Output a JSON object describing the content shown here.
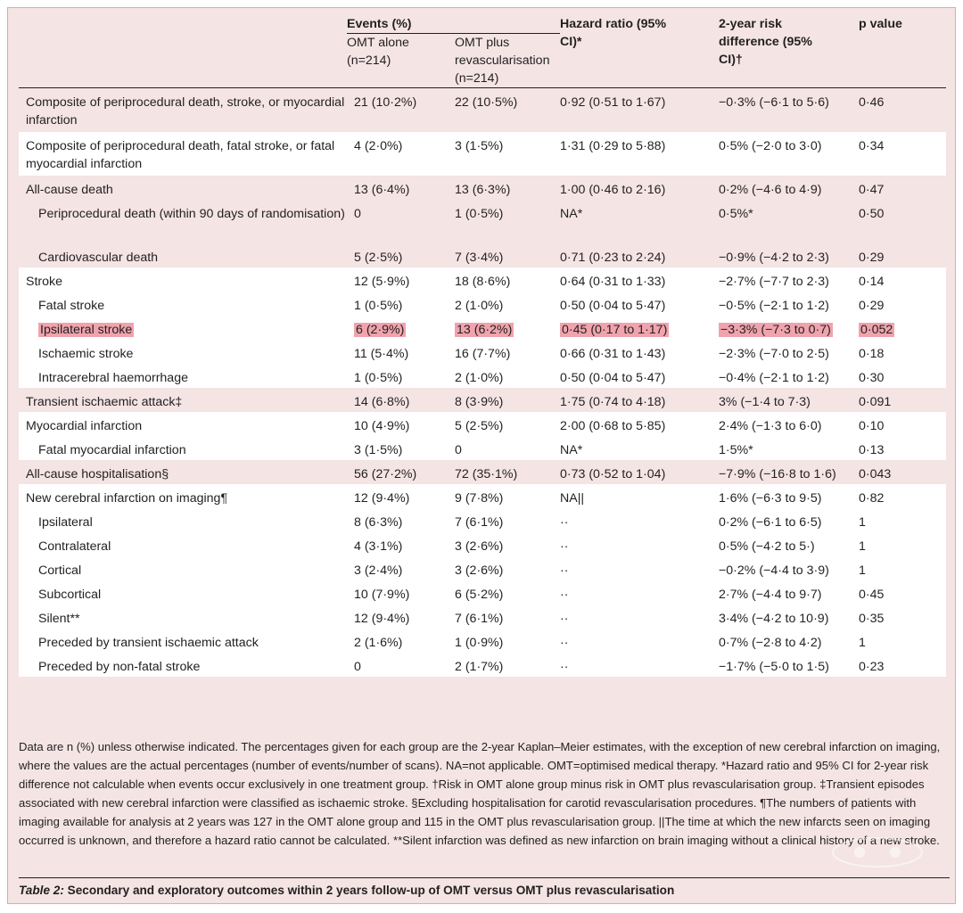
{
  "header": {
    "events": "Events (%)",
    "omt_alone": "OMT alone (n=214)",
    "omt_plus": "OMT plus revascularisation (n=214)",
    "hazard_ratio": "Hazard ratio (95% CI)*",
    "risk_diff": "2-year risk difference (95% CI)†",
    "p_value": "p value"
  },
  "rows": [
    {
      "label": "Composite of periprocedural death, stroke, or myocardial infarction",
      "omt": "21 (10·2%)",
      "plus": "22 (10·5%)",
      "hr": "0·92 (0·51 to 1·67)",
      "rd": "−0·3% (−6·1 to 5·6)",
      "p": "0·46"
    },
    {
      "label": "Composite of periprocedural death, fatal stroke, or fatal myocardial infarction",
      "omt": "4 (2·0%)",
      "plus": "3 (1·5%)",
      "hr": "1·31 (0·29 to 5·88)",
      "rd": "0·5% (−2·0 to 3·0)",
      "p": "0·34"
    },
    {
      "label": "All-cause death",
      "omt": "13 (6·4%)",
      "plus": "13 (6·3%)",
      "hr": "1·00 (0·46 to 2·16)",
      "rd": "0·2% (−4·6 to 4·9)",
      "p": "0·47"
    },
    {
      "label": "Periprocedural death (within 90 days of randomisation)",
      "omt": "0",
      "plus": "1 (0·5%)",
      "hr": "NA*",
      "rd": "0·5%*",
      "p": "0·50"
    },
    {
      "label": "Cardiovascular death",
      "omt": "5 (2·5%)",
      "plus": "7 (3·4%)",
      "hr": "0·71 (0·23 to 2·24)",
      "rd": "−0·9% (−4·2 to 2·3)",
      "p": "0·29"
    },
    {
      "label": "Stroke",
      "omt": "12 (5·9%)",
      "plus": "18 (8·6%)",
      "hr": "0·64 (0·31 to 1·33)",
      "rd": "−2·7% (−7·7 to 2·3)",
      "p": "0·14"
    },
    {
      "label": "Fatal stroke",
      "omt": "1 (0·5%)",
      "plus": "2 (1·0%)",
      "hr": "0·50 (0·04 to 5·47)",
      "rd": "−0·5% (−2·1 to 1·2)",
      "p": "0·29"
    },
    {
      "label": "Ipsilateral stroke",
      "omt": "6 (2·9%)",
      "plus": "13 (6·2%)",
      "hr": "0·45 (0·17 to 1·17)",
      "rd": "−3·3% (−7·3 to 0·7)",
      "p": "0·052"
    },
    {
      "label": "Ischaemic stroke",
      "omt": "11 (5·4%)",
      "plus": "16 (7·7%)",
      "hr": "0·66 (0·31 to 1·43)",
      "rd": "−2·3% (−7·0 to 2·5)",
      "p": "0·18"
    },
    {
      "label": "Intracerebral haemorrhage",
      "omt": "1 (0·5%)",
      "plus": "2 (1·0%)",
      "hr": "0·50 (0·04 to 5·47)",
      "rd": "−0·4% (−2·1 to 1·2)",
      "p": "0·30"
    },
    {
      "label": "Transient ischaemic attack‡",
      "omt": "14 (6·8%)",
      "plus": "8 (3·9%)",
      "hr": "1·75 (0·74 to 4·18)",
      "rd": "3% (−1·4 to 7·3)",
      "p": "0·091"
    },
    {
      "label": "Myocardial infarction",
      "omt": "10 (4·9%)",
      "plus": "5 (2·5%)",
      "hr": "2·00 (0·68 to 5·85)",
      "rd": "2·4% (−1·3 to 6·0)",
      "p": "0·10"
    },
    {
      "label": "Fatal myocardial infarction",
      "omt": "3 (1·5%)",
      "plus": "0",
      "hr": "NA*",
      "rd": "1·5%*",
      "p": "0·13"
    },
    {
      "label": "All-cause hospitalisation§",
      "omt": "56 (27·2%)",
      "plus": "72 (35·1%)",
      "hr": "0·73 (0·52 to 1·04)",
      "rd": "−7·9% (−16·8 to 1·6)",
      "p": "0·043"
    },
    {
      "label": "New cerebral infarction on imaging¶",
      "omt": "12 (9·4%)",
      "plus": "9 (7·8%)",
      "hr": "NA||",
      "rd": "1·6% (−6·3 to 9·5)",
      "p": "0·82"
    },
    {
      "label": "Ipsilateral",
      "omt": "8 (6·3%)",
      "plus": "7 (6·1%)",
      "hr": "··",
      "rd": "0·2% (−6·1 to 6·5)",
      "p": "1"
    },
    {
      "label": "Contralateral",
      "omt": "4 (3·1%)",
      "plus": "3 (2·6%)",
      "hr": "··",
      "rd": "0·5% (−4·2 to 5·)",
      "p": "1"
    },
    {
      "label": "Cortical",
      "omt": "3 (2·4%)",
      "plus": "3 (2·6%)",
      "hr": "··",
      "rd": "−0·2% (−4·4 to 3·9)",
      "p": "1"
    },
    {
      "label": "Subcortical",
      "omt": "10 (7·9%)",
      "plus": "6 (5·2%)",
      "hr": "··",
      "rd": "2·7% (−4·4 to 9·7)",
      "p": "0·45"
    },
    {
      "label": "Silent**",
      "omt": "12 (9·4%)",
      "plus": "7 (6·1%)",
      "hr": "··",
      "rd": "3·4% (−4·2 to 10·9)",
      "p": "0·35"
    },
    {
      "label": "Preceded by transient ischaemic attack",
      "omt": "2 (1·6%)",
      "plus": "1 (0·9%)",
      "hr": "··",
      "rd": "0·7% (−2·8 to 4·2)",
      "p": "1"
    },
    {
      "label": "Preceded by non-fatal stroke",
      "omt": "0",
      "plus": "2 (1·7%)",
      "hr": "··",
      "rd": "−1·7% (−5·0 to 1·5)",
      "p": "0·23"
    }
  ],
  "footnote": "Data are n (%) unless otherwise indicated. The percentages given for each group are the 2-year Kaplan–Meier estimates, with the exception of new cerebral infarction on imaging, where the values are the actual percentages (number of events/number of scans).  NA=not applicable. OMT=optimised medical therapy. *Hazard ratio and 95% CI for 2-year risk difference not calculable when events occur exclusively in one treatment group. †Risk in OMT alone group minus risk in OMT plus revascularisation group. ‡Transient episodes associated with new cerebral infarction were classified as ischaemic stroke. §Excluding hospitalisation for carotid revascularisation procedures. ¶The numbers of patients with imaging available for analysis at 2 years was 127 in the OMT alone group and 115 in the OMT plus revascularisation group. ||The time at which the new infarcts seen on imaging occurred is unknown, and therefore a hazard ratio cannot be calculated. **Silent infarction was defined as new infarction on brain imaging without a clinical history of a new stroke.",
  "caption": {
    "label": "Table 2:",
    "text": "Secondary and exploratory outcomes within 2 years follow-up of OMT versus OMT plus revascularisation"
  },
  "colors": {
    "pink_band": "#f4e4e4",
    "highlight": "#f0a3ad",
    "border": "#e2a9a9"
  }
}
